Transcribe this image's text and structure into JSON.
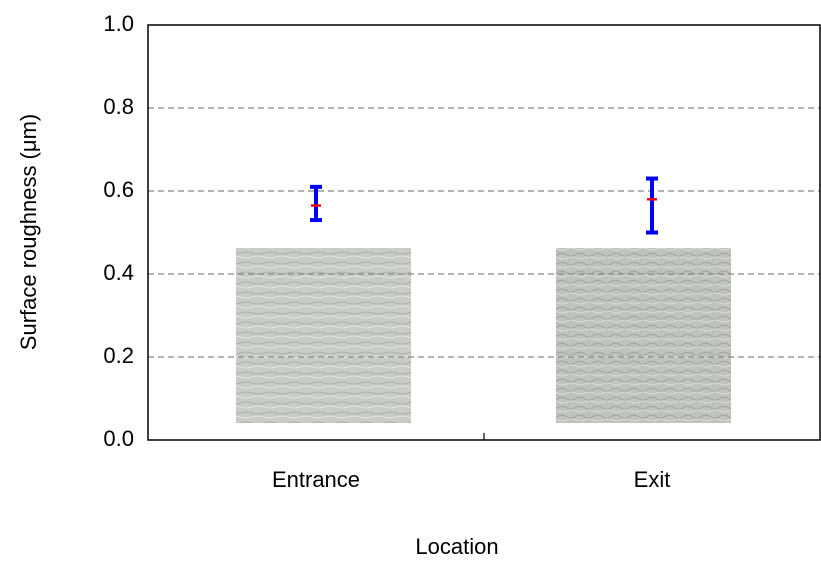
{
  "chart_data": {
    "type": "errorbar",
    "x_label": "Location",
    "y_label": "Surface roughness (μm)",
    "categories": [
      "Entrance",
      "Exit"
    ],
    "values": [
      0.565,
      0.58
    ],
    "lower": [
      0.53,
      0.5
    ],
    "upper": [
      0.61,
      0.63
    ],
    "color": "#0000ff",
    "mean_color": "#ff0000",
    "ylim": [
      0,
      1
    ],
    "yticks": [
      {
        "value": 0,
        "label": "0.0"
      },
      {
        "value": 0.2,
        "label": "0.2"
      },
      {
        "value": 0.4,
        "label": "0.4"
      },
      {
        "value": 0.6,
        "label": "0.6"
      },
      {
        "value": 0.8,
        "label": "0.8"
      },
      {
        "value": 1,
        "label": "1.0"
      }
    ],
    "grid": true
  }
}
